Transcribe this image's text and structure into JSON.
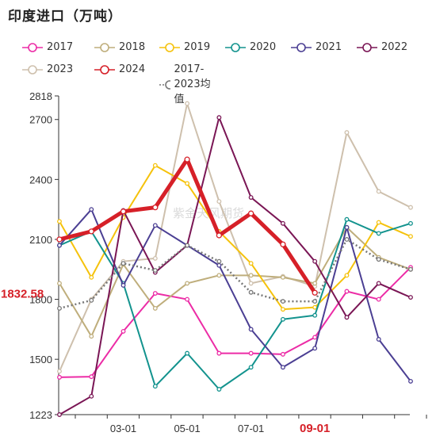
{
  "title": "印度进口（万吨）",
  "watermark": "紫金天风期货",
  "colors": {
    "2017": "#ec2ca6",
    "2018": "#bfae7c",
    "2019": "#f5c20c",
    "2020": "#13938e",
    "2021": "#4b3f93",
    "2022": "#7a1655",
    "2023": "#cec0ad",
    "2024": "#d62028",
    "avg": "#777777"
  },
  "chart_data": {
    "type": "line",
    "title": "印度进口（万吨）",
    "x_ticks": [
      "03-01",
      "05-01",
      "07-01",
      "09-01"
    ],
    "highlight_x_tick": "09-01",
    "ylim": [
      1223,
      2818
    ],
    "y_ticks": [
      1223,
      1500,
      1800,
      2100,
      2400,
      2700,
      2818
    ],
    "current_value_label": "1832.58",
    "series": [
      {
        "name": "2017",
        "values": [
          1410,
          1413,
          1640,
          1830,
          1800,
          1530,
          1530,
          1525,
          1610,
          1840,
          1800,
          1960
        ]
      },
      {
        "name": "2018",
        "values": [
          1880,
          1615,
          1975,
          1755,
          1880,
          1920,
          1920,
          1910,
          1880,
          2160,
          2010,
          1950
        ]
      },
      {
        "name": "2019",
        "values": [
          2190,
          1910,
          2210,
          2470,
          2380,
          2140,
          1980,
          1750,
          1760,
          1920,
          2185,
          2115
        ]
      },
      {
        "name": "2020",
        "values": [
          2070,
          2140,
          1880,
          1365,
          1530,
          1350,
          1460,
          1700,
          1720,
          2200,
          2130,
          2180
        ]
      },
      {
        "name": "2021",
        "values": [
          2070,
          2250,
          1870,
          2170,
          2070,
          1970,
          1650,
          1460,
          1555,
          2160,
          1600,
          1390
        ]
      },
      {
        "name": "2022",
        "values": [
          1223,
          1315,
          2245,
          1935,
          2070,
          2710,
          2310,
          2180,
          1990,
          1710,
          1880,
          1810
        ]
      },
      {
        "name": "2023",
        "values": [
          1440,
          1800,
          1990,
          2005,
          2780,
          2290,
          1880,
          1915,
          1865,
          2635,
          2340,
          2260
        ]
      },
      {
        "name": "2024",
        "values": [
          2100,
          2140,
          2240,
          2260,
          2500,
          2120,
          2230,
          2075,
          1833
        ]
      },
      {
        "name": "2017-2023均值",
        "values": [
          1755,
          1795,
          1980,
          1945,
          2070,
          1990,
          1835,
          1790,
          1790,
          2100,
          2000,
          1950
        ]
      }
    ]
  }
}
